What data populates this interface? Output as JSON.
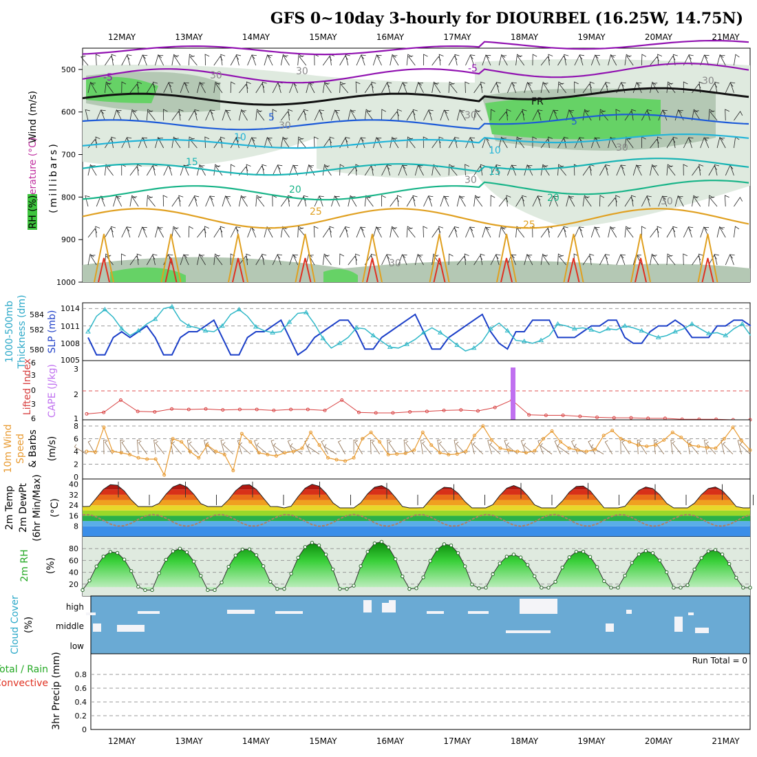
{
  "title": "GFS 0~10day 3-hourly for DIOURBEL (16.25W, 14.75N)",
  "dates": [
    "12MAY",
    "13MAY",
    "14MAY",
    "15MAY",
    "16MAY",
    "17MAY",
    "18MAY",
    "19MAY",
    "20MAY",
    "21MAY"
  ],
  "colors": {
    "rh_light": "#dfeadf",
    "rh_mid": "#b4c8b4",
    "rh_dark": "#8aa88a",
    "rh_green": "#66d266",
    "purple": "#9010b0",
    "blue": "#1c5ad8",
    "cyan": "#22b4d8",
    "teal": "#18b4b4",
    "green": "#18b488",
    "orange": "#e0a020",
    "red": "#e03020",
    "slp": "#1a3ec8",
    "thick": "#30b8c8",
    "cape": "#c070f0",
    "li": "#d84040",
    "wind10": "#e89a30",
    "cloud": "#6aaad4",
    "rh2": "#3ad03a"
  },
  "panels": {
    "p1": {
      "labels": [
        "Wind (m/s)",
        "Temperature (°C)",
        "RH (%)",
        "(millibars)"
      ],
      "ticks": [
        "500",
        "600",
        "700",
        "800",
        "900",
        "1000"
      ],
      "contours": [
        "-5",
        "-5",
        "5",
        "5",
        "10",
        "10",
        "15",
        "15",
        "20",
        "20",
        "25",
        "25",
        "FR",
        "30",
        "30",
        "30",
        "30",
        "30",
        "30",
        "30",
        "30",
        "30"
      ]
    },
    "p2": {
      "labels": [
        "1000-500mb",
        "Thickness (dm)",
        "SLP (mb)"
      ],
      "left_ticks": [
        "584",
        "582",
        "580"
      ],
      "right_ticks": [
        "1014",
        "1011",
        "1008",
        "1005"
      ]
    },
    "p3": {
      "labels": [
        "Lifted Index",
        "CAPE (J/kg)"
      ],
      "left_ticks": [
        "-6",
        "-3",
        "0",
        "3",
        "6"
      ],
      "right_ticks": [
        "3",
        "2",
        "1"
      ]
    },
    "p4": {
      "labels": [
        "10m Wind",
        "Speed",
        "& Barbs",
        "(m/s)"
      ],
      "ticks": [
        "8",
        "6",
        "4",
        "2",
        "0"
      ]
    },
    "p5": {
      "labels": [
        "2m Temp",
        "2m DewPt",
        "(6hr Min/Max)",
        "(°C)"
      ],
      "ticks": [
        "40",
        "32",
        "24",
        "16",
        "8"
      ]
    },
    "p6": {
      "labels": [
        "2m RH",
        "(%)"
      ],
      "ticks": [
        "80",
        "60",
        "40",
        "20"
      ]
    },
    "p7": {
      "labels": [
        "Cloud Cover",
        "(%)"
      ],
      "ticks": [
        "high",
        "middle",
        "low"
      ]
    },
    "p8": {
      "labels": [
        "3hr Precip (mm)",
        "Total / Rain",
        "Convective"
      ],
      "ticks": [
        "0.8",
        "0.6",
        "0.4",
        "0.2",
        "0"
      ],
      "run_total": "Run Total = 0"
    }
  },
  "chart_data": [
    {
      "type": "area",
      "name": "upper-air cross-section",
      "ylabel": "(millibars)",
      "ylim": [
        450,
        1000
      ],
      "isotherms": [
        -5,
        5,
        10,
        15,
        20,
        25
      ],
      "freezing_level_label": "FR",
      "rh_contour": 30
    },
    {
      "type": "line",
      "ylabel": "SLP (mb)",
      "ylim": [
        1005,
        1015
      ],
      "series": [
        {
          "name": "SLP",
          "values": [
            1009,
            1006,
            1006,
            1009,
            1010,
            1009,
            1010,
            1011,
            1009,
            1006,
            1006,
            1009,
            1010,
            1010,
            1011,
            1012,
            1009,
            1006,
            1006,
            1009,
            1010,
            1010,
            1011,
            1012,
            1009,
            1006,
            1007,
            1009,
            1010,
            1011,
            1012,
            1012,
            1010,
            1007,
            1007,
            1009,
            1010,
            1011,
            1012,
            1013,
            1010,
            1007,
            1007,
            1009,
            1010,
            1011,
            1012,
            1013,
            1010,
            1008,
            1007,
            1010,
            1010,
            1012,
            1012,
            1012,
            1009,
            1009,
            1009,
            1010,
            1011,
            1011,
            1012,
            1012,
            1009,
            1008,
            1008,
            1010,
            1011,
            1011,
            1012,
            1011,
            1009,
            1009,
            1009,
            1011,
            1011,
            1012,
            1012,
            1011
          ]
        },
        {
          "name": "1000-500mb Thickness",
          "values": [
            582.0,
            583.6,
            584.3,
            583.5,
            582.3,
            581.6,
            582.1,
            582.8,
            583.3,
            584.4,
            584.6,
            583.2,
            582.6,
            582.4,
            582.1,
            582.0,
            582.6,
            583.8,
            584.3,
            583.6,
            582.5,
            582.1,
            581.9,
            582.0,
            583.0,
            583.9,
            584.0,
            582.8,
            581.3,
            580.3,
            580.8,
            581.4,
            582.4,
            582.3,
            581.6,
            581.0,
            580.4,
            580.3,
            580.7,
            581.2,
            581.9,
            582.4,
            581.9,
            581.3,
            580.6,
            580.0,
            580.3,
            581.0,
            582.3,
            582.9,
            582.1,
            581.1,
            581.0,
            580.8,
            581.1,
            581.6,
            582.8,
            582.6,
            582.3,
            582.4,
            582.2,
            581.9,
            582.3,
            582.2,
            582.6,
            582.4,
            582.1,
            581.7,
            581.4,
            581.6,
            582.0,
            582.3,
            582.8,
            582.3,
            581.8,
            581.9,
            581.6,
            582.3,
            582.8,
            581.6
          ]
        }
      ]
    },
    {
      "type": "line",
      "ylabel": "CAPE (J/kg)",
      "series": [
        {
          "name": "Lifted Index",
          "values": [
            4.8,
            4.5,
            2.0,
            4.3,
            4.4,
            3.8,
            3.9,
            3.8,
            4.0,
            3.9,
            3.9,
            4.1,
            3.9,
            3.9,
            4.1,
            2.0,
            4.5,
            4.6,
            4.6,
            4.4,
            4.3,
            4.1,
            4.0,
            4.2,
            3.5,
            2.0,
            5.0,
            5.1,
            5.1,
            5.3,
            5.5,
            5.6,
            5.6,
            5.7,
            5.7,
            5.9,
            5.9,
            5.9,
            6.0,
            6.0
          ]
        },
        {
          "name": "CAPE",
          "values": [
            0,
            0,
            0,
            0,
            0,
            0,
            0,
            0,
            0,
            0,
            0,
            0,
            0,
            0,
            0,
            0,
            0,
            0,
            3.0,
            0,
            0,
            0,
            0,
            0,
            0,
            0,
            0,
            0,
            0,
            0
          ]
        }
      ]
    },
    {
      "type": "line",
      "ylabel": "(m/s)",
      "ylim": [
        0,
        8
      ],
      "series": [
        {
          "name": "10m Wind Speed",
          "values": [
            4.0,
            3.9,
            7.8,
            4.0,
            3.8,
            3.5,
            3.0,
            2.8,
            2.8,
            0.3,
            6.0,
            5.5,
            4.0,
            3.0,
            5.0,
            4.0,
            3.5,
            1.0,
            6.8,
            5.5,
            3.8,
            3.5,
            3.3,
            3.8,
            4.0,
            4.5,
            7.0,
            5.0,
            3.0,
            2.7,
            2.5,
            3.0,
            6.0,
            7.0,
            5.5,
            3.5,
            3.6,
            3.7,
            4.2,
            7.0,
            5.0,
            3.8,
            3.5,
            3.6,
            4.0,
            6.5,
            8.0,
            5.8,
            4.5,
            4.2,
            4.0,
            3.8,
            4.1,
            6.0,
            7.2,
            5.5,
            4.5,
            4.2,
            4.0,
            4.3,
            6.5,
            7.3,
            6.0,
            5.5,
            5.0,
            4.8,
            5.0,
            5.8,
            7.0,
            6.2,
            5.0,
            4.8,
            4.6,
            4.5,
            6.0,
            7.8,
            5.7,
            4.2
          ]
        }
      ]
    },
    {
      "type": "area",
      "ylabel": "(°C)",
      "ylim": [
        0,
        44
      ],
      "series": [
        {
          "name": "2m Temp",
          "daily_max": [
            40,
            40,
            40,
            40,
            39,
            38,
            39,
            39,
            38,
            38
          ],
          "daily_min": [
            23,
            23,
            23,
            22,
            22,
            22,
            22,
            22,
            22,
            22
          ]
        },
        {
          "name": "2m DewPt",
          "range": [
            8,
            17
          ]
        }
      ]
    },
    {
      "type": "area",
      "ylabel": "(%)",
      "ylim": [
        0,
        100
      ],
      "series": [
        {
          "name": "2m RH",
          "daily_max": [
            75,
            80,
            80,
            90,
            92,
            88,
            70,
            76,
            76,
            78
          ],
          "daily_min": [
            10,
            10,
            12,
            12,
            12,
            13,
            14,
            14,
            14,
            14
          ]
        }
      ]
    },
    {
      "type": "bar",
      "ylabel": "(%)",
      "categories": [
        "high",
        "middle",
        "low"
      ]
    },
    {
      "type": "bar",
      "ylabel": "3hr Precip (mm)",
      "ylim": [
        0,
        1
      ],
      "values": [],
      "run_total": 0
    }
  ]
}
